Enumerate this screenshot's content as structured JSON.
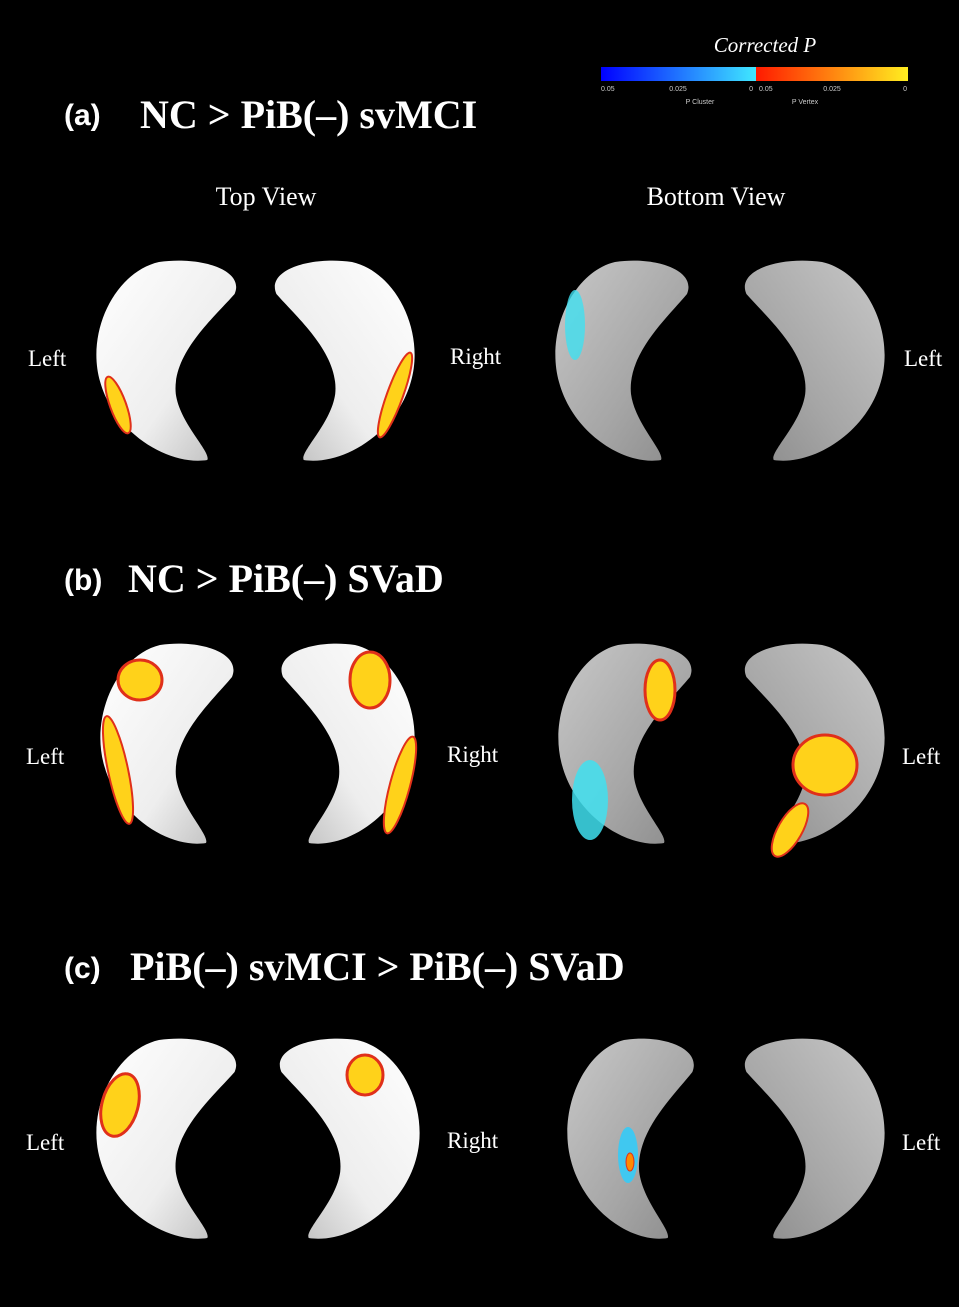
{
  "colorbar": {
    "title": "Corrected P",
    "cluster_ticks": [
      "0.05",
      "0.025",
      "0"
    ],
    "vertex_ticks": [
      "0.05",
      "0.025",
      "0"
    ],
    "cluster_label": "P Cluster",
    "vertex_label": "P Vertex"
  },
  "view_labels": [
    "Top View",
    "Bottom View"
  ],
  "panels": [
    {
      "tag": "(a)",
      "title": "NC > PiB(–) svMCI",
      "side_labels": [
        "Left",
        "Right",
        "Left"
      ]
    },
    {
      "tag": "(b)",
      "title": "NC > PiB(–) SVaD",
      "side_labels": [
        "Left",
        "Right",
        "Left"
      ]
    },
    {
      "tag": "(c)",
      "title": "PiB(–) svMCI > PiB(–) SVaD",
      "side_labels": [
        "Left",
        "Right",
        "Left"
      ]
    }
  ]
}
